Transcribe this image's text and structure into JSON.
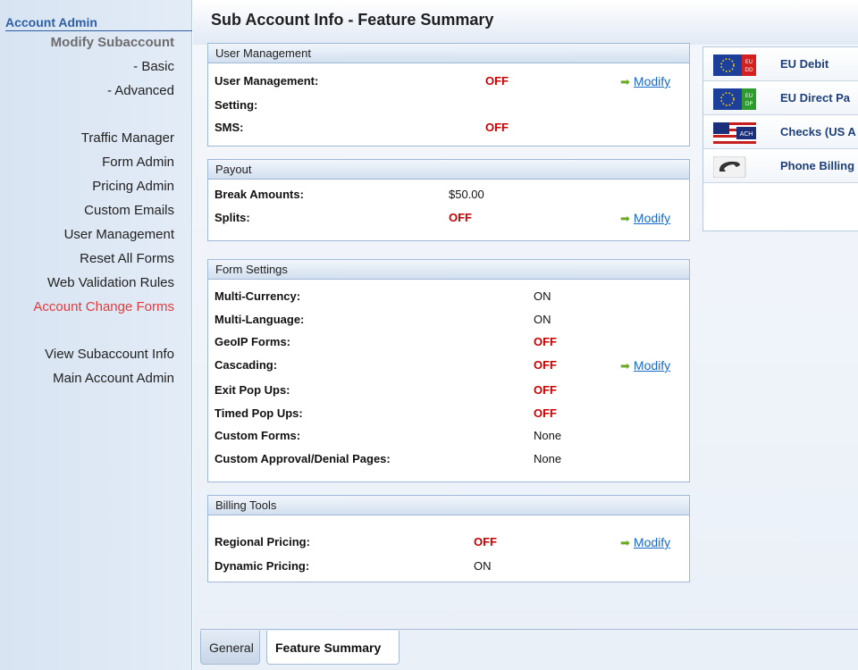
{
  "sidebar": {
    "title": "Account Admin",
    "items": [
      {
        "label": "Modify Subaccount",
        "style": "head"
      },
      {
        "label": "- Basic",
        "style": "normal"
      },
      {
        "label": "- Advanced",
        "style": "normal"
      },
      {
        "label": "Traffic Manager",
        "style": "normal"
      },
      {
        "label": "Form Admin",
        "style": "normal"
      },
      {
        "label": "Pricing Admin",
        "style": "normal"
      },
      {
        "label": "Custom Emails",
        "style": "normal"
      },
      {
        "label": "User Management",
        "style": "normal"
      },
      {
        "label": "Reset All Forms",
        "style": "normal"
      },
      {
        "label": "Web Validation Rules",
        "style": "normal"
      },
      {
        "label": "Account Change Forms",
        "style": "active"
      },
      {
        "label": "View Subaccount Info",
        "style": "normal"
      },
      {
        "label": "Main Account Admin",
        "style": "normal"
      }
    ]
  },
  "header": {
    "title": "Sub Account Info - Feature Summary"
  },
  "modify_label": "Modify",
  "panels": {
    "user_management": {
      "title": "User Management",
      "rows": [
        {
          "label": "User Management:",
          "value": "OFF"
        },
        {
          "label": "Setting:",
          "value": ""
        },
        {
          "label": "SMS:",
          "value": "OFF"
        }
      ]
    },
    "payout": {
      "title": "Payout",
      "rows": [
        {
          "label": "Break Amounts:",
          "value": "$50.00"
        },
        {
          "label": "Splits:",
          "value": "OFF"
        }
      ]
    },
    "form_settings": {
      "title": "Form Settings",
      "rows": [
        {
          "label": "Multi-Currency:",
          "value": "ON"
        },
        {
          "label": "Multi-Language:",
          "value": "ON"
        },
        {
          "label": "GeoIP Forms:",
          "value": "OFF"
        },
        {
          "label": "Cascading:",
          "value": "OFF"
        },
        {
          "label": "Exit Pop Ups:",
          "value": "OFF"
        },
        {
          "label": "Timed Pop Ups:",
          "value": "OFF"
        },
        {
          "label": "Custom Forms:",
          "value": "None"
        },
        {
          "label": "Custom Approval/Denial Pages:",
          "value": "None"
        }
      ]
    },
    "billing_tools": {
      "title": "Billing Tools",
      "rows": [
        {
          "label": "Regional Pricing:",
          "value": "OFF"
        },
        {
          "label": "Dynamic Pricing:",
          "value": "ON"
        }
      ]
    }
  },
  "payments": [
    {
      "name": "EU Debit",
      "icon": "eu-debit-icon"
    },
    {
      "name": "EU Direct Pa",
      "icon": "eu-direct-pay-icon"
    },
    {
      "name": "Checks (US A",
      "icon": "ach-check-icon"
    },
    {
      "name": "Phone Billing",
      "icon": "phone-icon"
    }
  ],
  "tabs": {
    "general": "General",
    "feature_summary": "Feature Summary"
  },
  "colors": {
    "off": "#c90000",
    "link": "#1769c9",
    "sidebar_active": "#e33b3b",
    "accent": "#2d5fa6"
  }
}
